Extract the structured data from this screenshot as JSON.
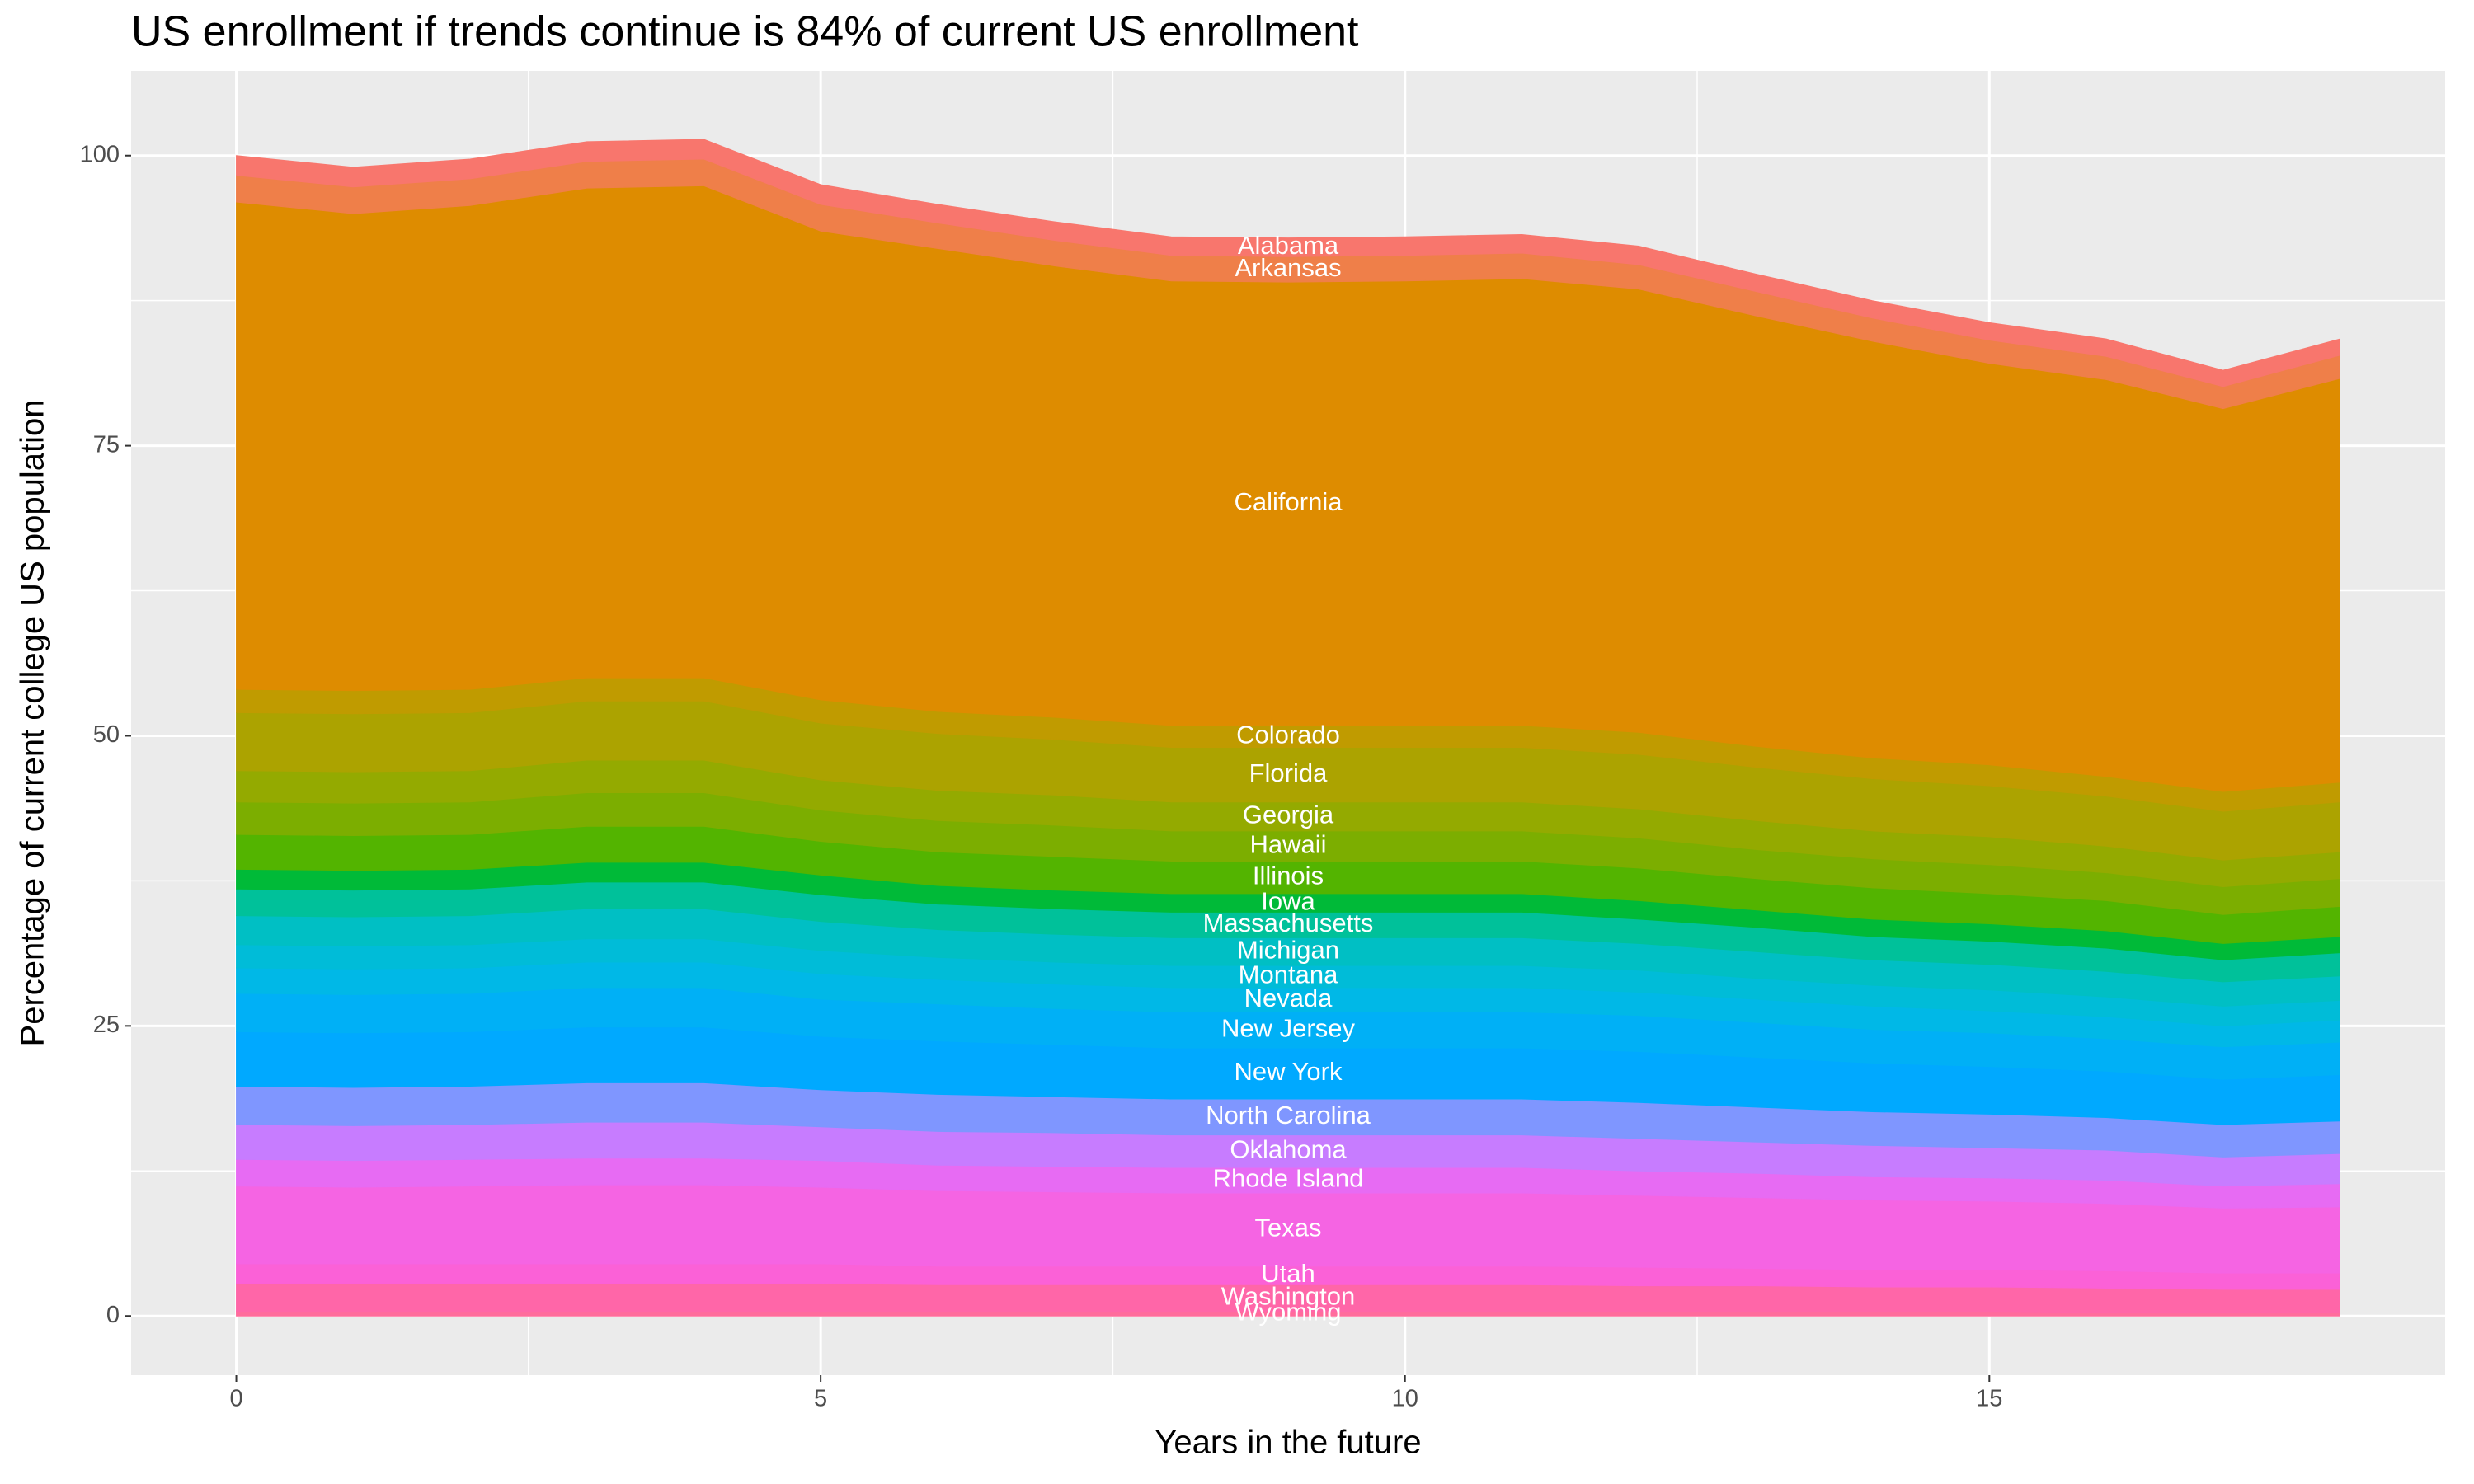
{
  "chart_data": {
    "type": "stacked_area",
    "title": "US enrollment if trends continue is 84% of current US enrollment",
    "x_label": "Years in the future",
    "y_label": "Percentage of current college US population",
    "x": [
      0,
      1,
      2,
      3,
      4,
      5,
      6,
      7,
      8,
      9,
      10,
      11,
      12,
      13,
      14,
      15,
      16,
      17,
      18
    ],
    "xlim": [
      -0.9,
      18.9
    ],
    "xticks": [
      0,
      5,
      10,
      15
    ],
    "ylim": [
      -5.1,
      107.3
    ],
    "yticks": [
      0,
      25,
      50,
      75,
      100
    ],
    "grid": true,
    "series": [
      {
        "name": "Wyoming",
        "color": "#ff6c9c",
        "values": [
          0.4,
          0.4,
          0.4,
          0.4,
          0.4,
          0.4,
          0.4,
          0.4,
          0.4,
          0.4,
          0.4,
          0.4,
          0.4,
          0.4,
          0.4,
          0.4,
          0.3,
          0.3,
          0.3
        ]
      },
      {
        "name": "Washington",
        "color": "#ff66a8",
        "values": [
          2.4,
          2.4,
          2.4,
          2.4,
          2.4,
          2.4,
          2.3,
          2.3,
          2.3,
          2.3,
          2.3,
          2.3,
          2.2,
          2.2,
          2.1,
          2.1,
          2.1,
          2.0,
          2.0
        ]
      },
      {
        "name": "Utah",
        "color": "#fb61d7",
        "values": [
          1.7,
          1.7,
          1.7,
          1.7,
          1.7,
          1.7,
          1.6,
          1.6,
          1.6,
          1.6,
          1.6,
          1.6,
          1.6,
          1.5,
          1.5,
          1.5,
          1.5,
          1.4,
          1.4
        ]
      },
      {
        "name": "Texas",
        "color": "#f564e3",
        "values": [
          6.7,
          6.6,
          6.7,
          6.8,
          6.8,
          6.6,
          6.5,
          6.4,
          6.3,
          6.3,
          6.3,
          6.3,
          6.2,
          6.1,
          6.0,
          5.9,
          5.8,
          5.6,
          5.7
        ]
      },
      {
        "name": "Rhode Island",
        "color": "#e76bf3",
        "values": [
          2.3,
          2.3,
          2.3,
          2.3,
          2.3,
          2.3,
          2.2,
          2.2,
          2.2,
          2.2,
          2.2,
          2.2,
          2.1,
          2.1,
          2.0,
          2.0,
          2.0,
          1.9,
          2.0
        ]
      },
      {
        "name": "Oklahoma",
        "color": "#c77cff",
        "values": [
          3.0,
          3.0,
          3.0,
          3.1,
          3.1,
          2.9,
          2.9,
          2.9,
          2.8,
          2.8,
          2.8,
          2.8,
          2.8,
          2.7,
          2.7,
          2.6,
          2.6,
          2.5,
          2.6
        ]
      },
      {
        "name": "North Carolina",
        "color": "#7f96ff",
        "values": [
          3.3,
          3.3,
          3.3,
          3.4,
          3.4,
          3.2,
          3.2,
          3.1,
          3.1,
          3.1,
          3.1,
          3.1,
          3.1,
          3.0,
          2.9,
          2.9,
          2.8,
          2.8,
          2.8
        ]
      },
      {
        "name": "New York",
        "color": "#00a9ff",
        "values": [
          4.7,
          4.7,
          4.7,
          4.8,
          4.8,
          4.6,
          4.6,
          4.5,
          4.4,
          4.4,
          4.4,
          4.4,
          4.4,
          4.3,
          4.2,
          4.1,
          4.0,
          3.9,
          4.0
        ]
      },
      {
        "name": "New Jersey",
        "color": "#00b0f6",
        "values": [
          3.3,
          3.3,
          3.3,
          3.4,
          3.4,
          3.2,
          3.2,
          3.1,
          3.1,
          3.1,
          3.1,
          3.1,
          3.1,
          3.0,
          2.9,
          2.9,
          2.8,
          2.8,
          2.8
        ]
      },
      {
        "name": "Nevada",
        "color": "#00b8e7",
        "values": [
          2.2,
          2.2,
          2.2,
          2.2,
          2.2,
          2.2,
          2.1,
          2.1,
          2.1,
          2.1,
          2.1,
          2.1,
          2.0,
          2.0,
          2.0,
          1.9,
          1.9,
          1.8,
          1.9
        ]
      },
      {
        "name": "Montana",
        "color": "#00bcd8",
        "values": [
          2.0,
          2.0,
          2.0,
          2.0,
          2.0,
          2.0,
          1.9,
          1.9,
          1.9,
          1.9,
          1.9,
          1.9,
          1.9,
          1.8,
          1.8,
          1.8,
          1.7,
          1.7,
          1.7
        ]
      },
      {
        "name": "Michigan",
        "color": "#00bfc4",
        "values": [
          2.5,
          2.5,
          2.5,
          2.6,
          2.6,
          2.5,
          2.4,
          2.4,
          2.4,
          2.4,
          2.4,
          2.4,
          2.3,
          2.3,
          2.2,
          2.2,
          2.2,
          2.1,
          2.1
        ]
      },
      {
        "name": "Massachusetts",
        "color": "#00c19a",
        "values": [
          2.3,
          2.3,
          2.3,
          2.3,
          2.3,
          2.3,
          2.2,
          2.2,
          2.2,
          2.2,
          2.2,
          2.2,
          2.1,
          2.1,
          2.0,
          2.0,
          2.0,
          1.9,
          2.0
        ]
      },
      {
        "name": "Iowa",
        "color": "#00ba38",
        "values": [
          1.7,
          1.7,
          1.7,
          1.7,
          1.7,
          1.7,
          1.6,
          1.6,
          1.6,
          1.6,
          1.6,
          1.6,
          1.6,
          1.5,
          1.5,
          1.5,
          1.5,
          1.4,
          1.4
        ]
      },
      {
        "name": "Illinois",
        "color": "#53b400",
        "values": [
          3.0,
          3.0,
          3.0,
          3.1,
          3.1,
          2.9,
          2.9,
          2.9,
          2.8,
          2.8,
          2.8,
          2.8,
          2.8,
          2.7,
          2.7,
          2.6,
          2.6,
          2.5,
          2.6
        ]
      },
      {
        "name": "Hawaii",
        "color": "#7cae00",
        "values": [
          2.8,
          2.8,
          2.8,
          2.9,
          2.9,
          2.7,
          2.7,
          2.7,
          2.6,
          2.6,
          2.6,
          2.6,
          2.6,
          2.5,
          2.5,
          2.5,
          2.4,
          2.4,
          2.4
        ]
      },
      {
        "name": "Georgia",
        "color": "#94aa00",
        "values": [
          2.7,
          2.7,
          2.7,
          2.8,
          2.8,
          2.6,
          2.6,
          2.6,
          2.5,
          2.5,
          2.5,
          2.5,
          2.5,
          2.5,
          2.4,
          2.4,
          2.3,
          2.3,
          2.3
        ]
      },
      {
        "name": "Florida",
        "color": "#aca300",
        "values": [
          5.0,
          5.0,
          5.0,
          5.1,
          5.1,
          4.9,
          4.9,
          4.8,
          4.7,
          4.7,
          4.7,
          4.7,
          4.7,
          4.6,
          4.5,
          4.4,
          4.3,
          4.2,
          4.3
        ]
      },
      {
        "name": "Colorado",
        "color": "#c09b00",
        "values": [
          2.0,
          2.0,
          2.0,
          2.0,
          2.0,
          2.0,
          1.9,
          1.9,
          1.9,
          1.9,
          1.9,
          1.9,
          1.9,
          1.8,
          1.8,
          1.8,
          1.7,
          1.7,
          1.7
        ]
      },
      {
        "name": "California",
        "color": "#de8c00",
        "values": [
          42,
          41.1,
          41.7,
          42.2,
          42.4,
          40.4,
          39.9,
          38.9,
          38.3,
          38.2,
          38.3,
          38.5,
          38.2,
          37.1,
          35.9,
          34.6,
          34.2,
          33.0,
          34.8
        ]
      },
      {
        "name": "Arkansas",
        "color": "#ef7f49",
        "values": [
          2.3,
          2.3,
          2.3,
          2.3,
          2.3,
          2.3,
          2.2,
          2.2,
          2.2,
          2.2,
          2.2,
          2.2,
          2.1,
          2.1,
          2.0,
          2.0,
          2.0,
          1.9,
          2.0
        ]
      },
      {
        "name": "Alabama",
        "color": "#f8766d",
        "values": [
          1.7,
          1.7,
          1.7,
          1.7,
          1.7,
          1.7,
          1.6,
          1.6,
          1.6,
          1.6,
          1.6,
          1.6,
          1.6,
          1.5,
          1.5,
          1.5,
          1.5,
          1.4,
          1.4
        ]
      }
    ]
  }
}
